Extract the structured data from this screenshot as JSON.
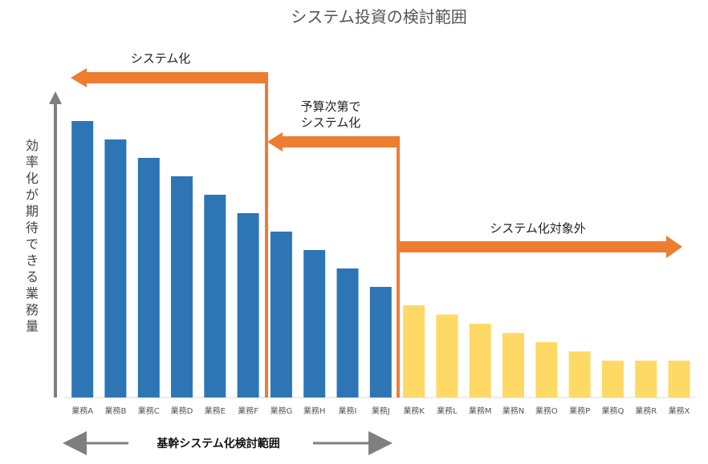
{
  "chart_data": {
    "type": "bar",
    "title": "システム投資の検討範囲",
    "xlabel": "",
    "ylabel": "効率化が期待できる業務量",
    "categories": [
      "業務A",
      "業務B",
      "業務C",
      "業務D",
      "業務E",
      "業務F",
      "業務G",
      "業務H",
      "業務I",
      "業務J",
      "業務K",
      "業務L",
      "業務M",
      "業務N",
      "業務O",
      "業務P",
      "業務Q",
      "業務R",
      "業務X"
    ],
    "values": [
      15,
      14,
      13,
      12,
      11,
      10,
      9,
      8,
      7,
      6,
      5,
      4.5,
      4,
      3.5,
      3,
      2.5,
      2,
      2,
      2
    ],
    "ylim": [
      0,
      16
    ],
    "grid": false,
    "colors": {
      "systemize": "#2E75B6",
      "exclude": "#FFD966",
      "arrow": "#ED7D31",
      "axis": "#7F7F7F",
      "bottom_arrow": "#7F7F7F"
    },
    "series_color_index": [
      0,
      0,
      0,
      0,
      0,
      0,
      0,
      0,
      0,
      0,
      1,
      1,
      1,
      1,
      1,
      1,
      1,
      1,
      1
    ],
    "annotations": {
      "system_ka": "システム化",
      "budget_line1": "予算次第で",
      "budget_line2": "システム化",
      "excluded": "システム化対象外"
    },
    "bottom_range_label": "基幹システム化検討範囲"
  }
}
